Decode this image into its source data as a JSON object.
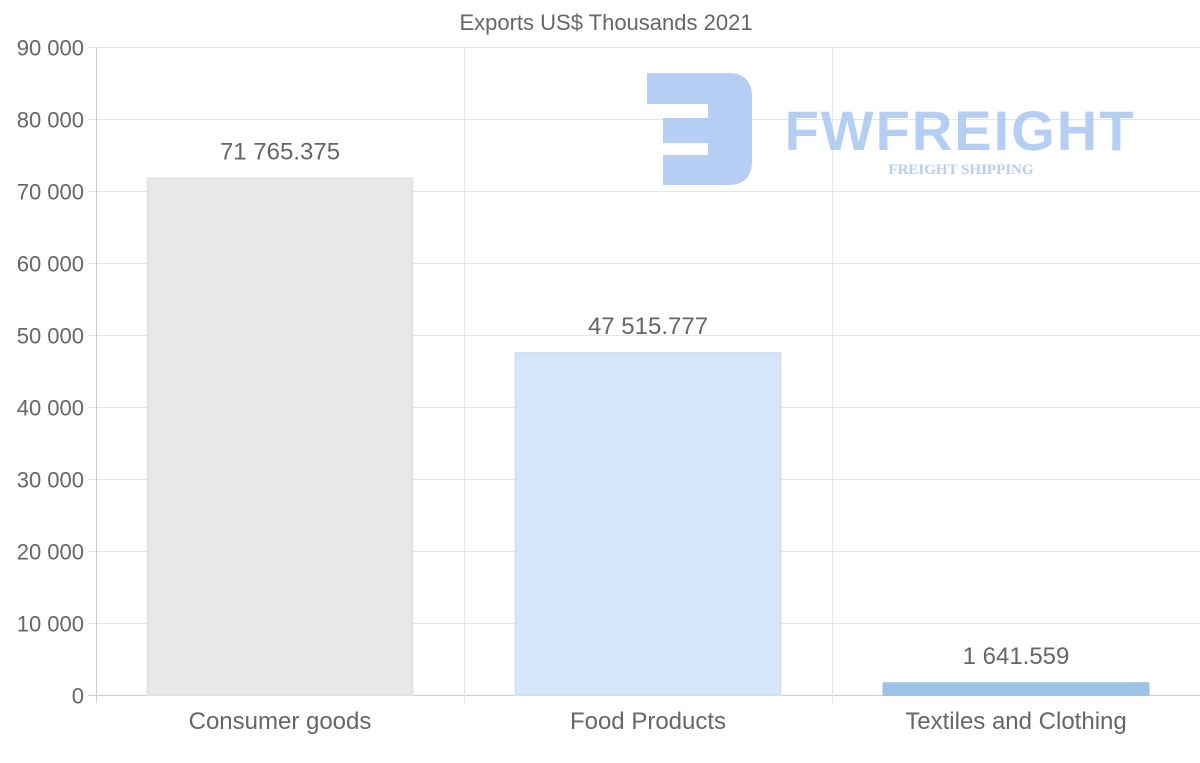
{
  "chart_data": {
    "type": "bar",
    "title": "Exports US$ Thousands 2021",
    "categories": [
      "Consumer goods",
      "Food Products",
      "Textiles and Clothing"
    ],
    "values": [
      71765.375,
      47515.777,
      1641.559
    ],
    "value_labels": [
      "71 765.375",
      "47 515.777",
      "1 641.559"
    ],
    "bar_colors": [
      "#e8e8e8",
      "#d6e6f9",
      "#9dc3e6"
    ],
    "bar_borders": [
      "#e3e3e3",
      "#cfe0f7",
      "#9dc3e6"
    ],
    "ylim": [
      0,
      90000
    ],
    "yticks": [
      0,
      10000,
      20000,
      30000,
      40000,
      50000,
      60000,
      70000,
      80000,
      90000
    ],
    "ytick_labels": [
      "0",
      "10 000",
      "20 000",
      "30 000",
      "40 000",
      "50 000",
      "60 000",
      "70 000",
      "80 000",
      "90 000"
    ],
    "xlabel": "",
    "ylabel": "",
    "grid": true,
    "legend": "none"
  },
  "watermark": {
    "brand": "FWFREIGHT",
    "tagline": "FREIGHT SHIPPING",
    "color": "#a9c6f2"
  }
}
